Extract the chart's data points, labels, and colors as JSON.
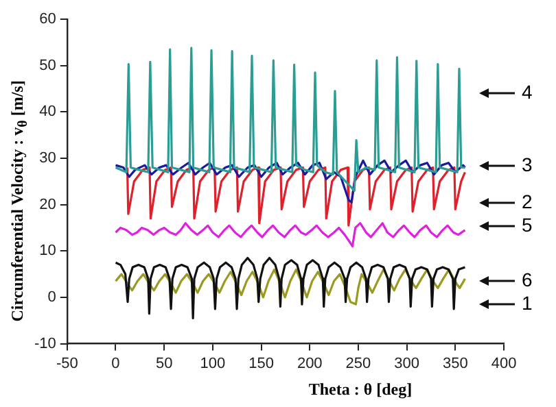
{
  "chart_data": {
    "type": "line",
    "xlabel": "Theta : θ [deg]",
    "ylabel": "Circumferential Velocity : v$_{θ}$ [m/s]",
    "xlim": [
      -50,
      400
    ],
    "xticks": [
      -50,
      0,
      50,
      100,
      150,
      200,
      250,
      300,
      350,
      400
    ],
    "ylim": [
      -10,
      60
    ],
    "yticks": [
      -10,
      0,
      10,
      20,
      30,
      40,
      50,
      60
    ],
    "grid": false,
    "legend": false,
    "marker": "none",
    "line_style": "solid",
    "series": [
      {
        "color": "#2a9d94",
        "x": [
          0,
          11,
          13.3,
          15.5,
          24,
          33.5,
          35.6,
          38,
          46,
          54,
          56,
          58,
          67,
          76,
          78,
          80,
          88,
          96.5,
          98.7,
          101,
          110,
          118,
          120,
          122,
          131,
          138,
          140.4,
          142.5,
          152,
          160.5,
          162.6,
          165,
          174,
          182,
          184,
          186,
          195,
          203.5,
          205.5,
          207.5,
          216,
          224,
          226,
          228,
          237,
          246,
          248,
          250,
          258,
          267,
          269,
          271,
          280,
          288,
          290,
          292,
          300,
          308,
          310,
          312,
          321,
          330,
          332,
          334,
          343,
          352,
          354,
          356,
          360
        ],
        "values": [
          28,
          27,
          50.3,
          28,
          27.5,
          27,
          50.8,
          28,
          27.5,
          27,
          53.5,
          28,
          27.5,
          27,
          53.8,
          28,
          27.5,
          27,
          53.3,
          28,
          27.5,
          27,
          53.1,
          28,
          27.5,
          27,
          52.1,
          28,
          27.5,
          27,
          51.1,
          28,
          27.5,
          27,
          50.2,
          28.5,
          27.5,
          27,
          48.5,
          28.5,
          27,
          26.5,
          44.5,
          27,
          25,
          23,
          33.9,
          27,
          28,
          27.5,
          51.1,
          28,
          27.5,
          27,
          51.8,
          28,
          27.5,
          27,
          51,
          28,
          27.5,
          27,
          50.3,
          28,
          27.5,
          27,
          49.3,
          28,
          28
        ]
      },
      {
        "color": "#1a1aa0",
        "x": [
          0,
          8,
          14,
          20,
          30,
          37,
          45,
          52,
          59,
          68,
          75,
          82,
          90,
          97,
          104,
          113,
          120,
          127,
          136,
          143,
          150,
          158,
          166,
          172,
          180,
          188,
          195,
          203,
          210,
          217,
          225,
          232,
          240,
          243,
          247,
          255,
          262,
          270,
          277,
          284,
          292,
          299,
          306,
          314,
          321,
          328,
          336,
          343,
          350,
          358,
          360
        ],
        "values": [
          28.5,
          28,
          26,
          27.5,
          28.5,
          26.5,
          28,
          28.5,
          26.5,
          28,
          29,
          26.5,
          28,
          29,
          26.5,
          28,
          28.5,
          26,
          28,
          28.5,
          26,
          28,
          29,
          26.5,
          28,
          29,
          26.5,
          28.5,
          29,
          25.5,
          27,
          26,
          21,
          20.5,
          26,
          29.5,
          26.5,
          28.5,
          29.5,
          27,
          28.5,
          29.5,
          27,
          28.5,
          29,
          26.5,
          28.5,
          29,
          27,
          28.5,
          28
        ]
      },
      {
        "color": "#e0202a",
        "x": [
          12,
          13,
          19,
          28,
          35,
          36,
          42,
          51,
          57,
          58,
          64,
          73,
          80,
          81,
          87,
          96,
          102,
          103,
          109,
          118,
          125,
          126,
          132,
          141,
          147,
          148,
          154,
          163,
          170,
          171,
          177,
          186,
          193,
          194,
          200,
          209,
          216,
          217,
          223,
          232,
          239,
          240,
          246,
          255,
          261,
          262,
          268,
          277,
          283,
          284,
          290,
          299,
          305,
          306,
          312,
          321,
          327,
          328,
          334,
          343,
          349,
          350,
          356,
          360
        ],
        "values": [
          28,
          18,
          25,
          27.5,
          28,
          17,
          25,
          27.5,
          28,
          19.5,
          25,
          27.5,
          28,
          17,
          25,
          27.5,
          28,
          18.5,
          25,
          27.5,
          28,
          18.5,
          25,
          27.5,
          28,
          16,
          25,
          27.5,
          28,
          19,
          25,
          27.5,
          28,
          19.5,
          25,
          27.5,
          28,
          17,
          25,
          27.5,
          28,
          15.5,
          25,
          27.5,
          28,
          19,
          25,
          27.5,
          28,
          19,
          25,
          27.5,
          28,
          18.5,
          25,
          27.5,
          28,
          19,
          25,
          27.5,
          28,
          19,
          25,
          27
        ]
      },
      {
        "color": "#e020e0",
        "x": [
          0,
          5,
          11,
          17,
          22,
          27,
          33,
          39,
          45,
          50,
          56,
          62,
          67,
          72,
          78,
          84,
          90,
          95,
          100,
          106,
          112,
          117,
          123,
          129,
          135,
          140,
          146,
          151,
          157,
          162,
          168,
          174,
          180,
          185,
          191,
          196,
          202,
          207,
          213,
          219,
          225,
          230,
          236,
          241,
          244,
          247,
          252,
          258,
          263,
          269,
          275,
          280,
          286,
          292,
          297,
          303,
          308,
          314,
          320,
          325,
          331,
          337,
          342,
          348,
          353,
          360
        ],
        "values": [
          14,
          15,
          14.5,
          13.5,
          14,
          15,
          14.5,
          13.5,
          14.5,
          15,
          14,
          13.5,
          14.5,
          16,
          14.5,
          13.5,
          14.5,
          15.5,
          14,
          13,
          14.5,
          15.5,
          14,
          13,
          14.5,
          15.5,
          14,
          13,
          14.5,
          15.5,
          14,
          13,
          14.5,
          15.5,
          14,
          13.5,
          14.5,
          15.5,
          14,
          13,
          14,
          15,
          13.5,
          12,
          11,
          15,
          16,
          14,
          13,
          14.5,
          16,
          14,
          13,
          14.5,
          15.5,
          14,
          13,
          14.5,
          15.5,
          14,
          13,
          14.5,
          15.5,
          14,
          13.5,
          14.5
        ]
      },
      {
        "color": "#111111",
        "x": [
          0,
          5,
          10,
          12.4,
          14,
          17.5,
          23.5,
          29.5,
          33.5,
          34.6,
          36,
          39.5,
          45.5,
          51.5,
          55.5,
          57,
          58.5,
          62,
          68,
          74,
          78.5,
          79.7,
          81,
          84.5,
          91,
          97,
          101,
          102.5,
          104,
          107.5,
          113.5,
          119.5,
          123.5,
          124.9,
          126.5,
          130,
          136,
          142,
          146,
          147.3,
          149,
          152.5,
          158.5,
          164.5,
          168.5,
          169.7,
          171,
          174.5,
          181,
          187,
          191,
          192,
          193.5,
          197,
          203,
          209,
          213.5,
          214.5,
          216,
          219.5,
          225.5,
          231.5,
          236,
          237,
          238.5,
          242,
          248,
          254,
          258,
          259,
          260.5,
          264,
          270,
          276,
          280.5,
          281.5,
          283,
          286.5,
          292.5,
          298.5,
          303,
          304,
          305.5,
          309,
          315,
          321,
          325,
          326,
          327.5,
          331,
          337,
          343,
          347.5,
          348.5,
          350,
          353.5,
          360
        ],
        "values": [
          7.5,
          7,
          5,
          -1,
          4,
          6.5,
          7,
          6.5,
          4,
          -3.5,
          4,
          6.5,
          7,
          6.5,
          4,
          -2.5,
          4,
          6.5,
          7,
          6.5,
          4,
          -4.5,
          4,
          6.5,
          7.5,
          6.5,
          4,
          -2.5,
          4,
          6.5,
          7.5,
          6.5,
          4,
          -2.5,
          4,
          7,
          8.5,
          7,
          4,
          -1,
          4,
          7,
          8.5,
          7,
          4,
          -2,
          4,
          7,
          8,
          7,
          4,
          -1.5,
          4,
          7,
          8,
          7,
          4,
          -2,
          4,
          6.5,
          7.5,
          6.5,
          4,
          -1,
          4,
          6.5,
          7.5,
          6.5,
          4,
          -1,
          4,
          6.5,
          7,
          6.5,
          4,
          -1,
          4,
          6.5,
          7,
          6.5,
          4,
          -2,
          4,
          6,
          6.5,
          6,
          4,
          -2,
          4,
          6,
          6.5,
          6,
          4,
          -2.5,
          4,
          6,
          6.5
        ]
      },
      {
        "color": "#9a9a20",
        "x": [
          0,
          6,
          12,
          17,
          22.5,
          28.5,
          34.5,
          39.5,
          45,
          51,
          57,
          62,
          67.5,
          73.5,
          79.5,
          84.5,
          90,
          96,
          102,
          107,
          112.5,
          118.5,
          124.5,
          129.5,
          135,
          141,
          147,
          152,
          157.5,
          163.5,
          169.5,
          174.5,
          180,
          186,
          192,
          197,
          202.5,
          208.5,
          214.5,
          219.5,
          225,
          231,
          237,
          242,
          247.5,
          250,
          253.5,
          259.5,
          264.5,
          270,
          276,
          282,
          287,
          292.5,
          298.5,
          304.5,
          309.5,
          315,
          321,
          327,
          332,
          337.5,
          343.5,
          349.5,
          354.5,
          360
        ],
        "values": [
          3.5,
          5,
          3,
          1.5,
          3.5,
          5,
          3,
          1.5,
          3.5,
          5,
          3,
          1,
          3.5,
          5,
          3,
          1,
          3.5,
          5,
          3,
          1,
          3.5,
          5.5,
          3,
          0.5,
          3.5,
          5.5,
          3,
          0,
          3.5,
          6,
          3,
          0,
          3.5,
          6,
          3,
          0,
          3.5,
          5.5,
          3,
          0.5,
          3.5,
          5,
          2,
          -1,
          -1.5,
          2,
          5,
          3,
          1,
          3.5,
          6,
          3.5,
          1.5,
          4,
          6,
          3.5,
          2,
          4,
          6,
          3.5,
          2,
          4,
          6,
          3.5,
          2,
          4
        ]
      }
    ],
    "annotations": [
      "4",
      "3",
      "2",
      "5",
      "6",
      "1"
    ]
  }
}
